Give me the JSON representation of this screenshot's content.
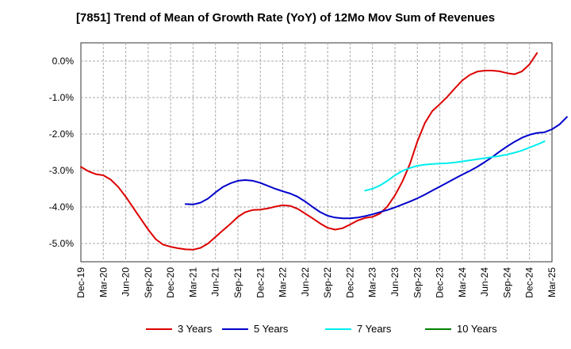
{
  "chart_data": {
    "type": "line",
    "title": "[7851]  Trend of Mean of Growth Rate (YoY) of 12Mo Mov Sum of Revenues",
    "xlabel": "",
    "ylabel": "",
    "ylim": [
      -5.5,
      0.5
    ],
    "grid": true,
    "legend_position": "bottom",
    "x_range": [
      "2019-12",
      "2025-03"
    ],
    "y_ticks": [
      0,
      -1,
      -2,
      -3,
      -4,
      -5
    ],
    "y_tick_labels": [
      "0.0%",
      "-1.0%",
      "-2.0%",
      "-3.0%",
      "-4.0%",
      "-5.0%"
    ],
    "x_tick_labels": [
      "Dec-19",
      "Mar-20",
      "Jun-20",
      "Sep-20",
      "Dec-20",
      "Mar-21",
      "Jun-21",
      "Sep-21",
      "Dec-21",
      "Mar-22",
      "Jun-22",
      "Sep-22",
      "Dec-22",
      "Mar-23",
      "Jun-23",
      "Sep-23",
      "Dec-23",
      "Mar-24",
      "Jun-24",
      "Sep-24",
      "Dec-24",
      "Mar-25"
    ],
    "series": [
      {
        "name": "3 Years",
        "color": "#dd0000",
        "start": "2019-12",
        "values": [
          -2.9,
          -3.02,
          -3.1,
          -3.13,
          -3.25,
          -3.45,
          -3.72,
          -4.02,
          -4.32,
          -4.62,
          -4.88,
          -5.03,
          -5.09,
          -5.13,
          -5.16,
          -5.17,
          -5.12,
          -5.0,
          -4.82,
          -4.64,
          -4.46,
          -4.27,
          -4.14,
          -4.08,
          -4.07,
          -4.04,
          -3.99,
          -3.95,
          -3.97,
          -4.05,
          -4.18,
          -4.31,
          -4.45,
          -4.57,
          -4.62,
          -4.58,
          -4.48,
          -4.37,
          -4.3,
          -4.27,
          -4.18,
          -3.98,
          -3.68,
          -3.3,
          -2.82,
          -2.2,
          -1.7,
          -1.37,
          -1.18,
          -0.98,
          -0.75,
          -0.53,
          -0.38,
          -0.29,
          -0.26,
          -0.26,
          -0.28,
          -0.33,
          -0.36,
          -0.28,
          -0.09,
          0.22
        ]
      },
      {
        "name": "5 Years",
        "color": "#0000cc",
        "start": "2021-02",
        "values": [
          -3.92,
          -3.93,
          -3.88,
          -3.77,
          -3.6,
          -3.45,
          -3.35,
          -3.28,
          -3.26,
          -3.28,
          -3.34,
          -3.42,
          -3.5,
          -3.57,
          -3.63,
          -3.72,
          -3.85,
          -4.0,
          -4.14,
          -4.24,
          -4.29,
          -4.31,
          -4.31,
          -4.29,
          -4.25,
          -4.2,
          -4.14,
          -4.08,
          -4.01,
          -3.93,
          -3.85,
          -3.76,
          -3.66,
          -3.55,
          -3.44,
          -3.33,
          -3.22,
          -3.11,
          -3.01,
          -2.9,
          -2.77,
          -2.63,
          -2.48,
          -2.34,
          -2.21,
          -2.1,
          -2.02,
          -1.97,
          -1.95,
          -1.87,
          -1.74,
          -1.53
        ]
      },
      {
        "name": "7 Years",
        "color": "#00eeee",
        "start": "2023-02",
        "values": [
          -3.55,
          -3.5,
          -3.41,
          -3.28,
          -3.13,
          -3.01,
          -2.93,
          -2.87,
          -2.84,
          -2.82,
          -2.81,
          -2.8,
          -2.78,
          -2.75,
          -2.72,
          -2.69,
          -2.66,
          -2.63,
          -2.6,
          -2.56,
          -2.51,
          -2.45,
          -2.37,
          -2.29,
          -2.2
        ]
      },
      {
        "name": "10 Years",
        "color": "#008000",
        "start": "2024-12",
        "values": []
      }
    ]
  }
}
